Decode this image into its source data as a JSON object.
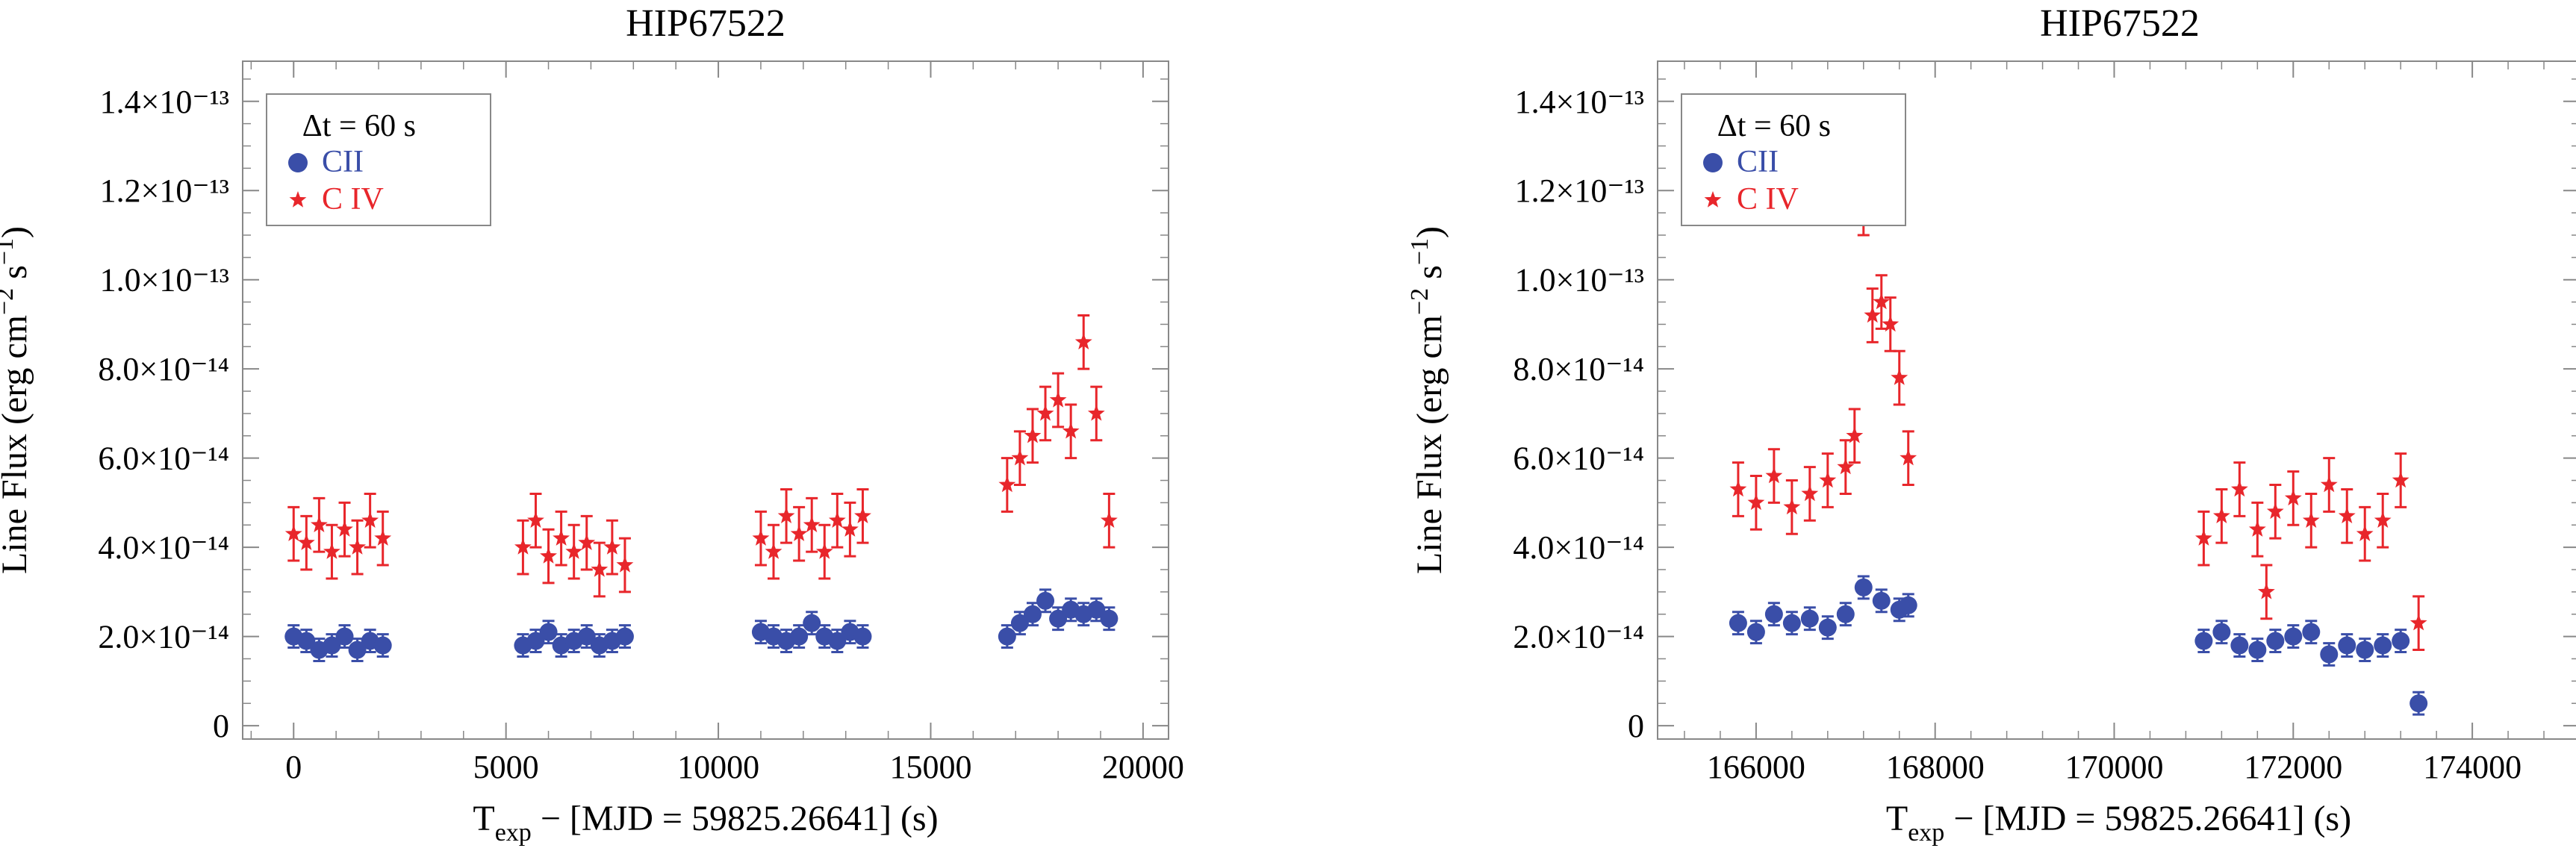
{
  "figure": {
    "left_panel": {
      "title": "HIP67522"
    },
    "right_panel": {
      "title": "HIP67522"
    }
  },
  "chart_data": [
    {
      "type": "scatter",
      "title": "HIP67522",
      "xlabel": "T_exp − [MJD = 59825.26641] (s)",
      "ylabel": "Line Flux (erg cm^-2 s^-1)",
      "xlim": [
        -1200,
        20600
      ],
      "ylim": [
        -3e-15,
        1.49e-13
      ],
      "xticks": [
        0,
        5000,
        10000,
        15000,
        20000
      ],
      "yticks": [
        0,
        2e-14,
        4e-14,
        6e-14,
        8e-14,
        1e-13,
        1.2e-13,
        1.4e-13
      ],
      "ytick_labels": [
        "0",
        "2.0×10⁻¹⁴",
        "4.0×10⁻¹⁴",
        "6.0×10⁻¹⁴",
        "8.0×10⁻¹⁴",
        "1.0×10⁻¹³",
        "1.2×10⁻¹³",
        "1.4×10⁻¹³"
      ],
      "legend": {
        "placement": "top-left",
        "dt_text": "Δt =   60 s"
      },
      "grid": false,
      "series": [
        {
          "name": "CII",
          "color": "#3a4ea8",
          "marker": "circle",
          "x": [
            0,
            300,
            600,
            900,
            1200,
            1500,
            1800,
            2100,
            5400,
            5700,
            6000,
            6300,
            6600,
            6900,
            7200,
            7500,
            7800,
            11000,
            11300,
            11600,
            11900,
            12200,
            12500,
            12800,
            13100,
            13400,
            16800,
            17100,
            17400,
            17700,
            18000,
            18300,
            18600,
            18900,
            19200
          ],
          "y": [
            2e-14,
            1.9e-14,
            1.7e-14,
            1.8e-14,
            2e-14,
            1.7e-14,
            1.9e-14,
            1.8e-14,
            1.8e-14,
            1.9e-14,
            2.1e-14,
            1.8e-14,
            1.9e-14,
            2e-14,
            1.8e-14,
            1.9e-14,
            2e-14,
            2.1e-14,
            2e-14,
            1.9e-14,
            2e-14,
            2.3e-14,
            2e-14,
            1.9e-14,
            2.1e-14,
            2e-14,
            2e-14,
            2.3e-14,
            2.5e-14,
            2.8e-14,
            2.4e-14,
            2.6e-14,
            2.5e-14,
            2.6e-14,
            2.4e-14
          ],
          "err": 2.5e-15
        },
        {
          "name": "C IV",
          "color": "#e8262b",
          "marker": "star",
          "x": [
            0,
            300,
            600,
            900,
            1200,
            1500,
            1800,
            2100,
            5400,
            5700,
            6000,
            6300,
            6600,
            6900,
            7200,
            7500,
            7800,
            11000,
            11300,
            11600,
            11900,
            12200,
            12500,
            12800,
            13100,
            13400,
            16800,
            17100,
            17400,
            17700,
            18000,
            18300,
            18600,
            18900,
            19200
          ],
          "y": [
            4.3e-14,
            4.1e-14,
            4.5e-14,
            3.9e-14,
            4.4e-14,
            4e-14,
            4.6e-14,
            4.2e-14,
            4e-14,
            4.6e-14,
            3.8e-14,
            4.2e-14,
            3.9e-14,
            4.1e-14,
            3.5e-14,
            4e-14,
            3.6e-14,
            4.2e-14,
            3.9e-14,
            4.7e-14,
            4.3e-14,
            4.5e-14,
            3.9e-14,
            4.6e-14,
            4.4e-14,
            4.7e-14,
            5.4e-14,
            6e-14,
            6.5e-14,
            7e-14,
            7.3e-14,
            6.6e-14,
            8.6e-14,
            7e-14,
            4.6e-14
          ],
          "err": 6e-15
        }
      ]
    },
    {
      "type": "scatter",
      "title": "HIP67522",
      "xlabel": "T_exp − [MJD = 59825.26641] (s)",
      "ylabel": "Line Flux (erg cm^-2 s^-1)",
      "xlim": [
        164900,
        175200
      ],
      "ylim": [
        -3e-15,
        1.49e-13
      ],
      "xticks": [
        166000,
        168000,
        170000,
        172000,
        174000
      ],
      "yticks": [
        0,
        2e-14,
        4e-14,
        6e-14,
        8e-14,
        1e-13,
        1.2e-13,
        1.4e-13
      ],
      "ytick_labels": [
        "0",
        "2.0×10⁻¹⁴",
        "4.0×10⁻¹⁴",
        "6.0×10⁻¹⁴",
        "8.0×10⁻¹⁴",
        "1.0×10⁻¹³",
        "1.2×10⁻¹³",
        "1.4×10⁻¹³"
      ],
      "legend": {
        "placement": "top-left",
        "dt_text": "Δt =   60 s"
      },
      "grid": false,
      "series": [
        {
          "name": "CII",
          "color": "#3a4ea8",
          "marker": "circle",
          "x": [
            165800,
            166000,
            166200,
            166400,
            166600,
            166800,
            167000,
            167200,
            167400,
            167600,
            167700,
            171000,
            171200,
            171400,
            171600,
            171800,
            172000,
            172200,
            172400,
            172600,
            172800,
            173000,
            173200,
            173400
          ],
          "y": [
            2.3e-14,
            2.1e-14,
            2.5e-14,
            2.3e-14,
            2.4e-14,
            2.2e-14,
            2.5e-14,
            3.1e-14,
            2.8e-14,
            2.6e-14,
            2.7e-14,
            1.9e-14,
            2.1e-14,
            1.8e-14,
            1.7e-14,
            1.9e-14,
            2e-14,
            2.1e-14,
            1.6e-14,
            1.8e-14,
            1.7e-14,
            1.8e-14,
            1.9e-14,
            5e-15
          ],
          "err": 2.5e-15
        },
        {
          "name": "C IV",
          "color": "#e8262b",
          "marker": "star",
          "x": [
            165800,
            166000,
            166200,
            166400,
            166600,
            166800,
            167000,
            167100,
            167200,
            167300,
            167400,
            167500,
            167600,
            167700,
            171000,
            171200,
            171400,
            171600,
            171700,
            171800,
            172000,
            172200,
            172400,
            172600,
            172800,
            173000,
            173200,
            173400
          ],
          "y": [
            5.3e-14,
            5e-14,
            5.6e-14,
            4.9e-14,
            5.2e-14,
            5.5e-14,
            5.8e-14,
            6.5e-14,
            1.16e-13,
            9.2e-14,
            9.5e-14,
            9e-14,
            7.8e-14,
            6e-14,
            4.2e-14,
            4.7e-14,
            5.3e-14,
            4.4e-14,
            3e-14,
            4.8e-14,
            5.1e-14,
            4.6e-14,
            5.4e-14,
            4.7e-14,
            4.3e-14,
            4.6e-14,
            5.5e-14,
            2.3e-14
          ],
          "err": 6e-15
        }
      ]
    }
  ]
}
